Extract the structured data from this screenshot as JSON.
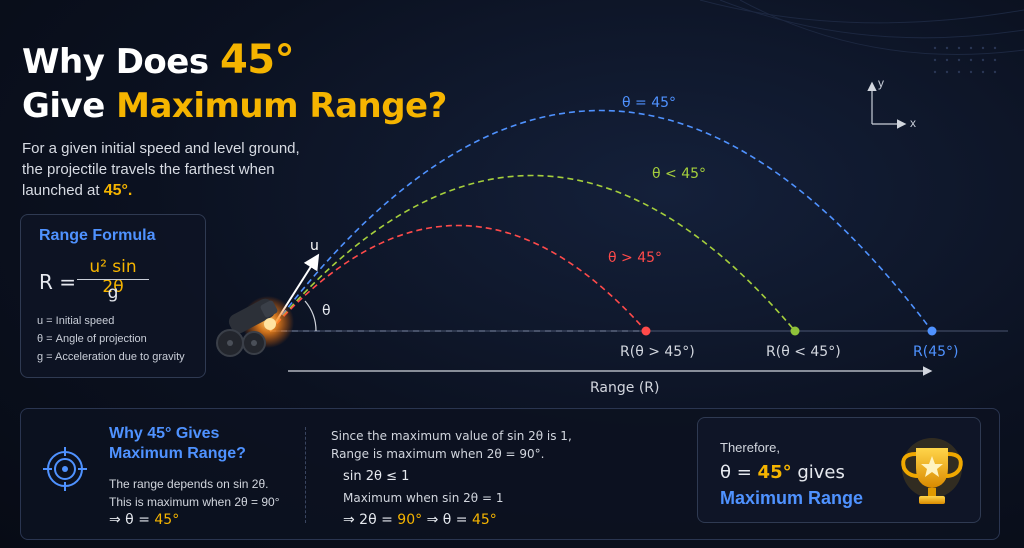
{
  "title": {
    "line1_prefix": "Why Does ",
    "line1_accent": "45°",
    "line2_prefix": "Give ",
    "line2_accent": "Maximum Range?"
  },
  "intro": {
    "text": "For a given initial speed and level ground, the projectile travels the farthest when launched at ",
    "accent": "45°."
  },
  "formula": {
    "title": "Range Formula",
    "lhs": "R =",
    "numerator": "u² sin 2θ",
    "denominator": "g",
    "defs": [
      "u = Initial speed",
      "θ = Angle of projection",
      "g = Acceleration due to gravity"
    ]
  },
  "diagram": {
    "curves": [
      {
        "label": "θ = 45°",
        "color": "#4f92ff",
        "landing_label": "R(45°)"
      },
      {
        "label": "θ < 45°",
        "color": "#a5cf3c",
        "landing_label": "R(θ < 45°)"
      },
      {
        "label": "θ > 45°",
        "color": "#ff4a4a",
        "landing_label": "R(θ > 45°)"
      }
    ],
    "velocity_label": "u",
    "angle_label": "θ",
    "range_label": "Range (R)",
    "axis_y": "y",
    "axis_x": "x"
  },
  "panel": {
    "why_title": "Why 45° Gives Maximum Range?",
    "why_line1": "The range depends on sin 2θ.",
    "why_line2": "This is maximum when 2θ = 90°",
    "why_result_prefix": "⇒ θ = ",
    "why_result_accent": "45°",
    "mid_line1": "Since the maximum value of sin 2θ is 1,",
    "mid_line2": "Range is maximum when 2θ = 90°.",
    "mid_line3": "sin 2θ ≤ 1",
    "mid_line4": "Maximum when sin 2θ = 1",
    "mid_result_a": "⇒ 2θ = ",
    "mid_result_b": "90°",
    "mid_result_c": " ⇒ θ = ",
    "mid_result_d": "45°",
    "therefore": "Therefore,",
    "therefore_prefix": "θ = ",
    "therefore_accent": "45°",
    "therefore_suffix": " gives",
    "therefore_final": "Maximum Range"
  },
  "icons": [
    "target-icon",
    "trophy-icon",
    "cannon-icon"
  ]
}
